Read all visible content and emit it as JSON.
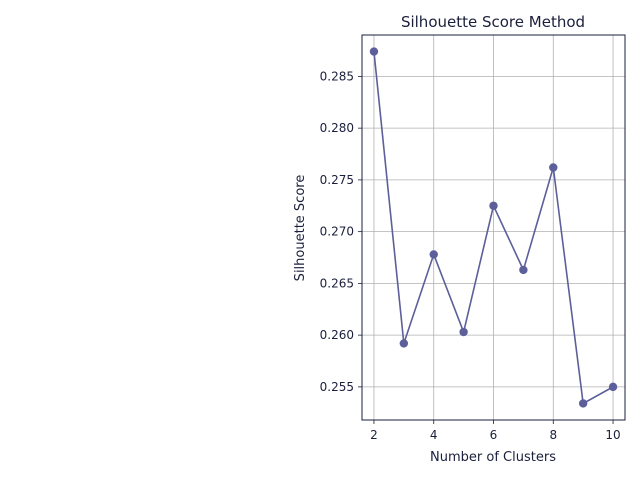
{
  "chart_data": {
    "type": "line",
    "title": "Silhouette Score Method",
    "xlabel": "Number of Clusters",
    "ylabel": "Silhouette Score",
    "x": [
      2,
      3,
      4,
      5,
      6,
      7,
      8,
      9,
      10
    ],
    "series": [
      {
        "values": [
          0.2874,
          0.2592,
          0.2678,
          0.2603,
          0.2725,
          0.2663,
          0.2762,
          0.2534,
          0.255
        ],
        "color": "#5c5f9a",
        "marker": "circle"
      }
    ],
    "xlim": [
      1.6,
      10.4
    ],
    "ylim": [
      0.2518,
      0.289
    ],
    "xticks": [
      2,
      4,
      6,
      8,
      10
    ],
    "xtick_labels": [
      "2",
      "4",
      "6",
      "8",
      "10"
    ],
    "yticks": [
      0.255,
      0.26,
      0.265,
      0.27,
      0.275,
      0.28,
      0.285
    ],
    "ytick_labels": [
      "0.255",
      "0.260",
      "0.265",
      "0.270",
      "0.275",
      "0.280",
      "0.285"
    ],
    "grid": true,
    "colors": {
      "axes_frame": "#1a1f3c",
      "grid": "#b0b0b0",
      "text": "#1a1f3c"
    }
  }
}
